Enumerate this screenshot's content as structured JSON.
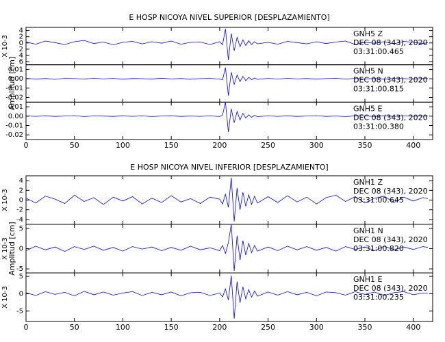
{
  "chart_data": [
    {
      "type": "line",
      "title": "E HOSP NICOYA NIVEL SUPERIOR [DESPLAZAMIENTO]",
      "ylabel": "Amplitud [cm]",
      "xlim": [
        0,
        420
      ],
      "xticks": [
        0,
        50,
        100,
        150,
        200,
        250,
        300,
        350,
        400
      ],
      "x": [
        0,
        10,
        20,
        30,
        40,
        50,
        60,
        70,
        80,
        90,
        100,
        110,
        120,
        130,
        140,
        150,
        160,
        170,
        180,
        190,
        200,
        203,
        206,
        209,
        212,
        215,
        218,
        221,
        224,
        227,
        230,
        233,
        236,
        239,
        250,
        260,
        270,
        280,
        290,
        300,
        310,
        320,
        330,
        340,
        350,
        360,
        370,
        380,
        390,
        400,
        410,
        415
      ],
      "panels": [
        {
          "color": "#0000ff",
          "scale_label": "X 10-3",
          "ylim": [
            -7,
            5
          ],
          "yticks": [
            4,
            2,
            0,
            {
              "value": -2,
              "label": "2"
            },
            {
              "value": -4,
              "label": "4"
            },
            {
              "value": -6,
              "label": "6"
            }
          ],
          "annotation": [
            "GNH5   Z",
            "DEC 08 (343), 2020",
            "03:31:00.465"
          ],
          "values": [
            0.3,
            -0.4,
            0.6,
            0.1,
            -0.5,
            0.4,
            0.8,
            -0.2,
            0.3,
            -0.6,
            0.2,
            0.5,
            -0.3,
            0.4,
            -0.1,
            0.6,
            -0.4,
            0.2,
            0.3,
            -0.5,
            0.4,
            -0.6,
            4.5,
            -5.5,
            3.0,
            -2.5,
            1.8,
            -1.2,
            1.0,
            -0.8,
            0.7,
            -0.5,
            0.4,
            -0.3,
            0.2,
            -0.4,
            0.5,
            0.1,
            -0.3,
            0.4,
            -0.2,
            0.3,
            0.6,
            -0.5,
            0.2,
            -0.1,
            0.4,
            -0.3,
            0.5,
            0.2,
            -0.2,
            0.1
          ]
        },
        {
          "color": "#0000ff",
          "ylim": [
            -0.025,
            0.015
          ],
          "yticks": [
            0.01,
            {
              "value": 0,
              "label": "0.00"
            },
            -0.01,
            -0.02
          ],
          "annotation": [
            "GNH5   N",
            "DEC 08 (343), 2020",
            "03:31:00.815"
          ],
          "values": [
            0.0005,
            -0.0004,
            0.0003,
            -0.0006,
            0.0004,
            0.0002,
            -0.0003,
            0.0005,
            -0.0002,
            0.0004,
            -0.0005,
            0.0003,
            0.0001,
            -0.0004,
            0.0006,
            -0.0002,
            0.0003,
            -0.0005,
            0.0002,
            0.0004,
            -0.0003,
            -0.001,
            0.012,
            -0.018,
            0.007,
            -0.006,
            0.004,
            -0.003,
            0.0025,
            -0.002,
            0.0015,
            -0.001,
            0.0008,
            -0.0006,
            0.0004,
            -0.0003,
            0.0005,
            -0.0002,
            0.0003,
            -0.0004,
            0.0002,
            0.0005,
            -0.0003,
            0.0004,
            -0.0002,
            0.0003,
            -0.0005,
            0.0004,
            0.0002,
            -0.0003,
            0.0004,
            0.0002
          ]
        },
        {
          "color": "#0000ff",
          "ylim": [
            -0.025,
            0.015
          ],
          "yticks": [
            0.01,
            {
              "value": 0,
              "label": "0.00"
            },
            -0.01,
            -0.02
          ],
          "annotation": [
            "GNH5   E",
            "DEC 08 (343), 2020",
            "03:31:00.380"
          ],
          "values": [
            0.0003,
            -0.0002,
            0.0004,
            -0.0003,
            0.0002,
            0.0005,
            -0.0004,
            0.0003,
            0.0001,
            -0.0003,
            0.0004,
            -0.0002,
            0.0003,
            -0.0004,
            0.0002,
            0.0004,
            -0.0003,
            0.0002,
            -0.0002,
            0.0003,
            -0.0004,
            0.0012,
            0.015,
            -0.017,
            0.008,
            -0.007,
            0.005,
            -0.004,
            0.003,
            -0.002,
            0.0015,
            -0.0012,
            0.0008,
            -0.0005,
            0.0003,
            -0.0002,
            0.0004,
            -0.0003,
            0.0002,
            0.0005,
            -0.0003,
            0.0002,
            -0.0004,
            0.0003,
            0.0002,
            -0.0003,
            0.0004,
            -0.0002,
            0.0003,
            -0.0001,
            0.0002,
            0.0001
          ]
        }
      ]
    },
    {
      "type": "line",
      "title": "E HOSP NICOYA NIVEL INFERIOR [DESPLAZAMIENTO]",
      "ylabel": "Amplitud [cm]",
      "xlim": [
        0,
        420
      ],
      "xticks": [
        0,
        50,
        100,
        150,
        200,
        250,
        300,
        350,
        400
      ],
      "x": [
        0,
        10,
        20,
        30,
        40,
        50,
        60,
        70,
        80,
        90,
        100,
        110,
        120,
        130,
        140,
        150,
        160,
        170,
        180,
        190,
        200,
        203,
        206,
        209,
        212,
        215,
        218,
        221,
        224,
        227,
        230,
        233,
        236,
        239,
        250,
        260,
        270,
        280,
        290,
        300,
        310,
        320,
        330,
        340,
        350,
        360,
        370,
        380,
        390,
        400,
        410,
        415
      ],
      "panels": [
        {
          "color": "#0000ff",
          "scale_label": "X 10-3",
          "ylim": [
            -5,
            5
          ],
          "yticks": [
            4,
            2,
            0,
            -2,
            -4
          ],
          "annotation": [
            "GNH1   Z",
            "DEC 08 (343), 2020",
            "03:31:00.645"
          ],
          "values": [
            0.4,
            -0.6,
            0.8,
            0.2,
            -0.7,
            1.0,
            -0.3,
            0.5,
            -0.9,
            0.6,
            -0.2,
            0.7,
            -0.8,
            0.4,
            -0.5,
            0.9,
            -0.4,
            0.3,
            -0.7,
            0.6,
            0.2,
            -0.8,
            1.2,
            -1.5,
            4.6,
            -4.4,
            2.5,
            -2.0,
            1.6,
            -1.3,
            1.1,
            -0.9,
            0.8,
            -0.6,
            0.7,
            -0.5,
            0.9,
            -0.4,
            0.6,
            -0.8,
            0.5,
            1.0,
            -0.3,
            0.7,
            -0.6,
            0.4,
            0.8,
            -0.5,
            0.6,
            -0.2,
            0.5,
            0.3
          ]
        },
        {
          "color": "#0000ff",
          "scale_label": "X 10-3",
          "ylim": [
            -6,
            6
          ],
          "yticks": [
            5,
            0,
            -5
          ],
          "annotation": [
            "GNH1   N",
            "DEC 08 (343), 2020",
            "03:31:00.820"
          ],
          "values": [
            -0.5,
            0.6,
            -0.3,
            0.4,
            -0.7,
            0.5,
            -0.2,
            0.6,
            -0.4,
            0.3,
            -0.6,
            0.5,
            -0.1,
            0.4,
            -0.5,
            0.3,
            -0.4,
            0.6,
            -0.3,
            0.2,
            -0.5,
            0.8,
            -1.2,
            1.5,
            6.0,
            -5.5,
            3.2,
            -2.8,
            2.0,
            -1.6,
            1.3,
            -1.0,
            0.8,
            -0.6,
            0.4,
            -0.5,
            0.6,
            -0.3,
            0.5,
            -0.4,
            0.3,
            -0.6,
            0.5,
            -0.2,
            0.4,
            -0.5,
            0.6,
            -0.3,
            0.4,
            -0.2,
            0.5,
            0.3
          ]
        },
        {
          "color": "#0000ff",
          "scale_label": "X 10-3",
          "ylim": [
            -8,
            6
          ],
          "yticks": [
            5,
            0,
            -5
          ],
          "annotation": [
            "GNH1   E",
            "DEC 08 (343), 2020",
            "03:31:00.235"
          ],
          "values": [
            0.3,
            -0.5,
            0.6,
            -0.2,
            0.4,
            -0.6,
            0.7,
            -0.3,
            0.5,
            -0.4,
            0.2,
            0.6,
            -0.5,
            0.4,
            -0.3,
            0.5,
            -0.6,
            0.3,
            0.4,
            -0.5,
            0.2,
            -0.9,
            1.4,
            -1.8,
            5.2,
            -7.2,
            3.5,
            -2.6,
            2.0,
            -1.5,
            1.2,
            -1.0,
            0.8,
            -0.7,
            0.5,
            -0.4,
            0.6,
            -0.3,
            0.4,
            -0.6,
            0.5,
            0.3,
            -0.4,
            0.6,
            -0.2,
            0.5,
            -0.5,
            0.3,
            0.6,
            -0.3,
            0.2,
            0.1
          ]
        }
      ]
    }
  ]
}
